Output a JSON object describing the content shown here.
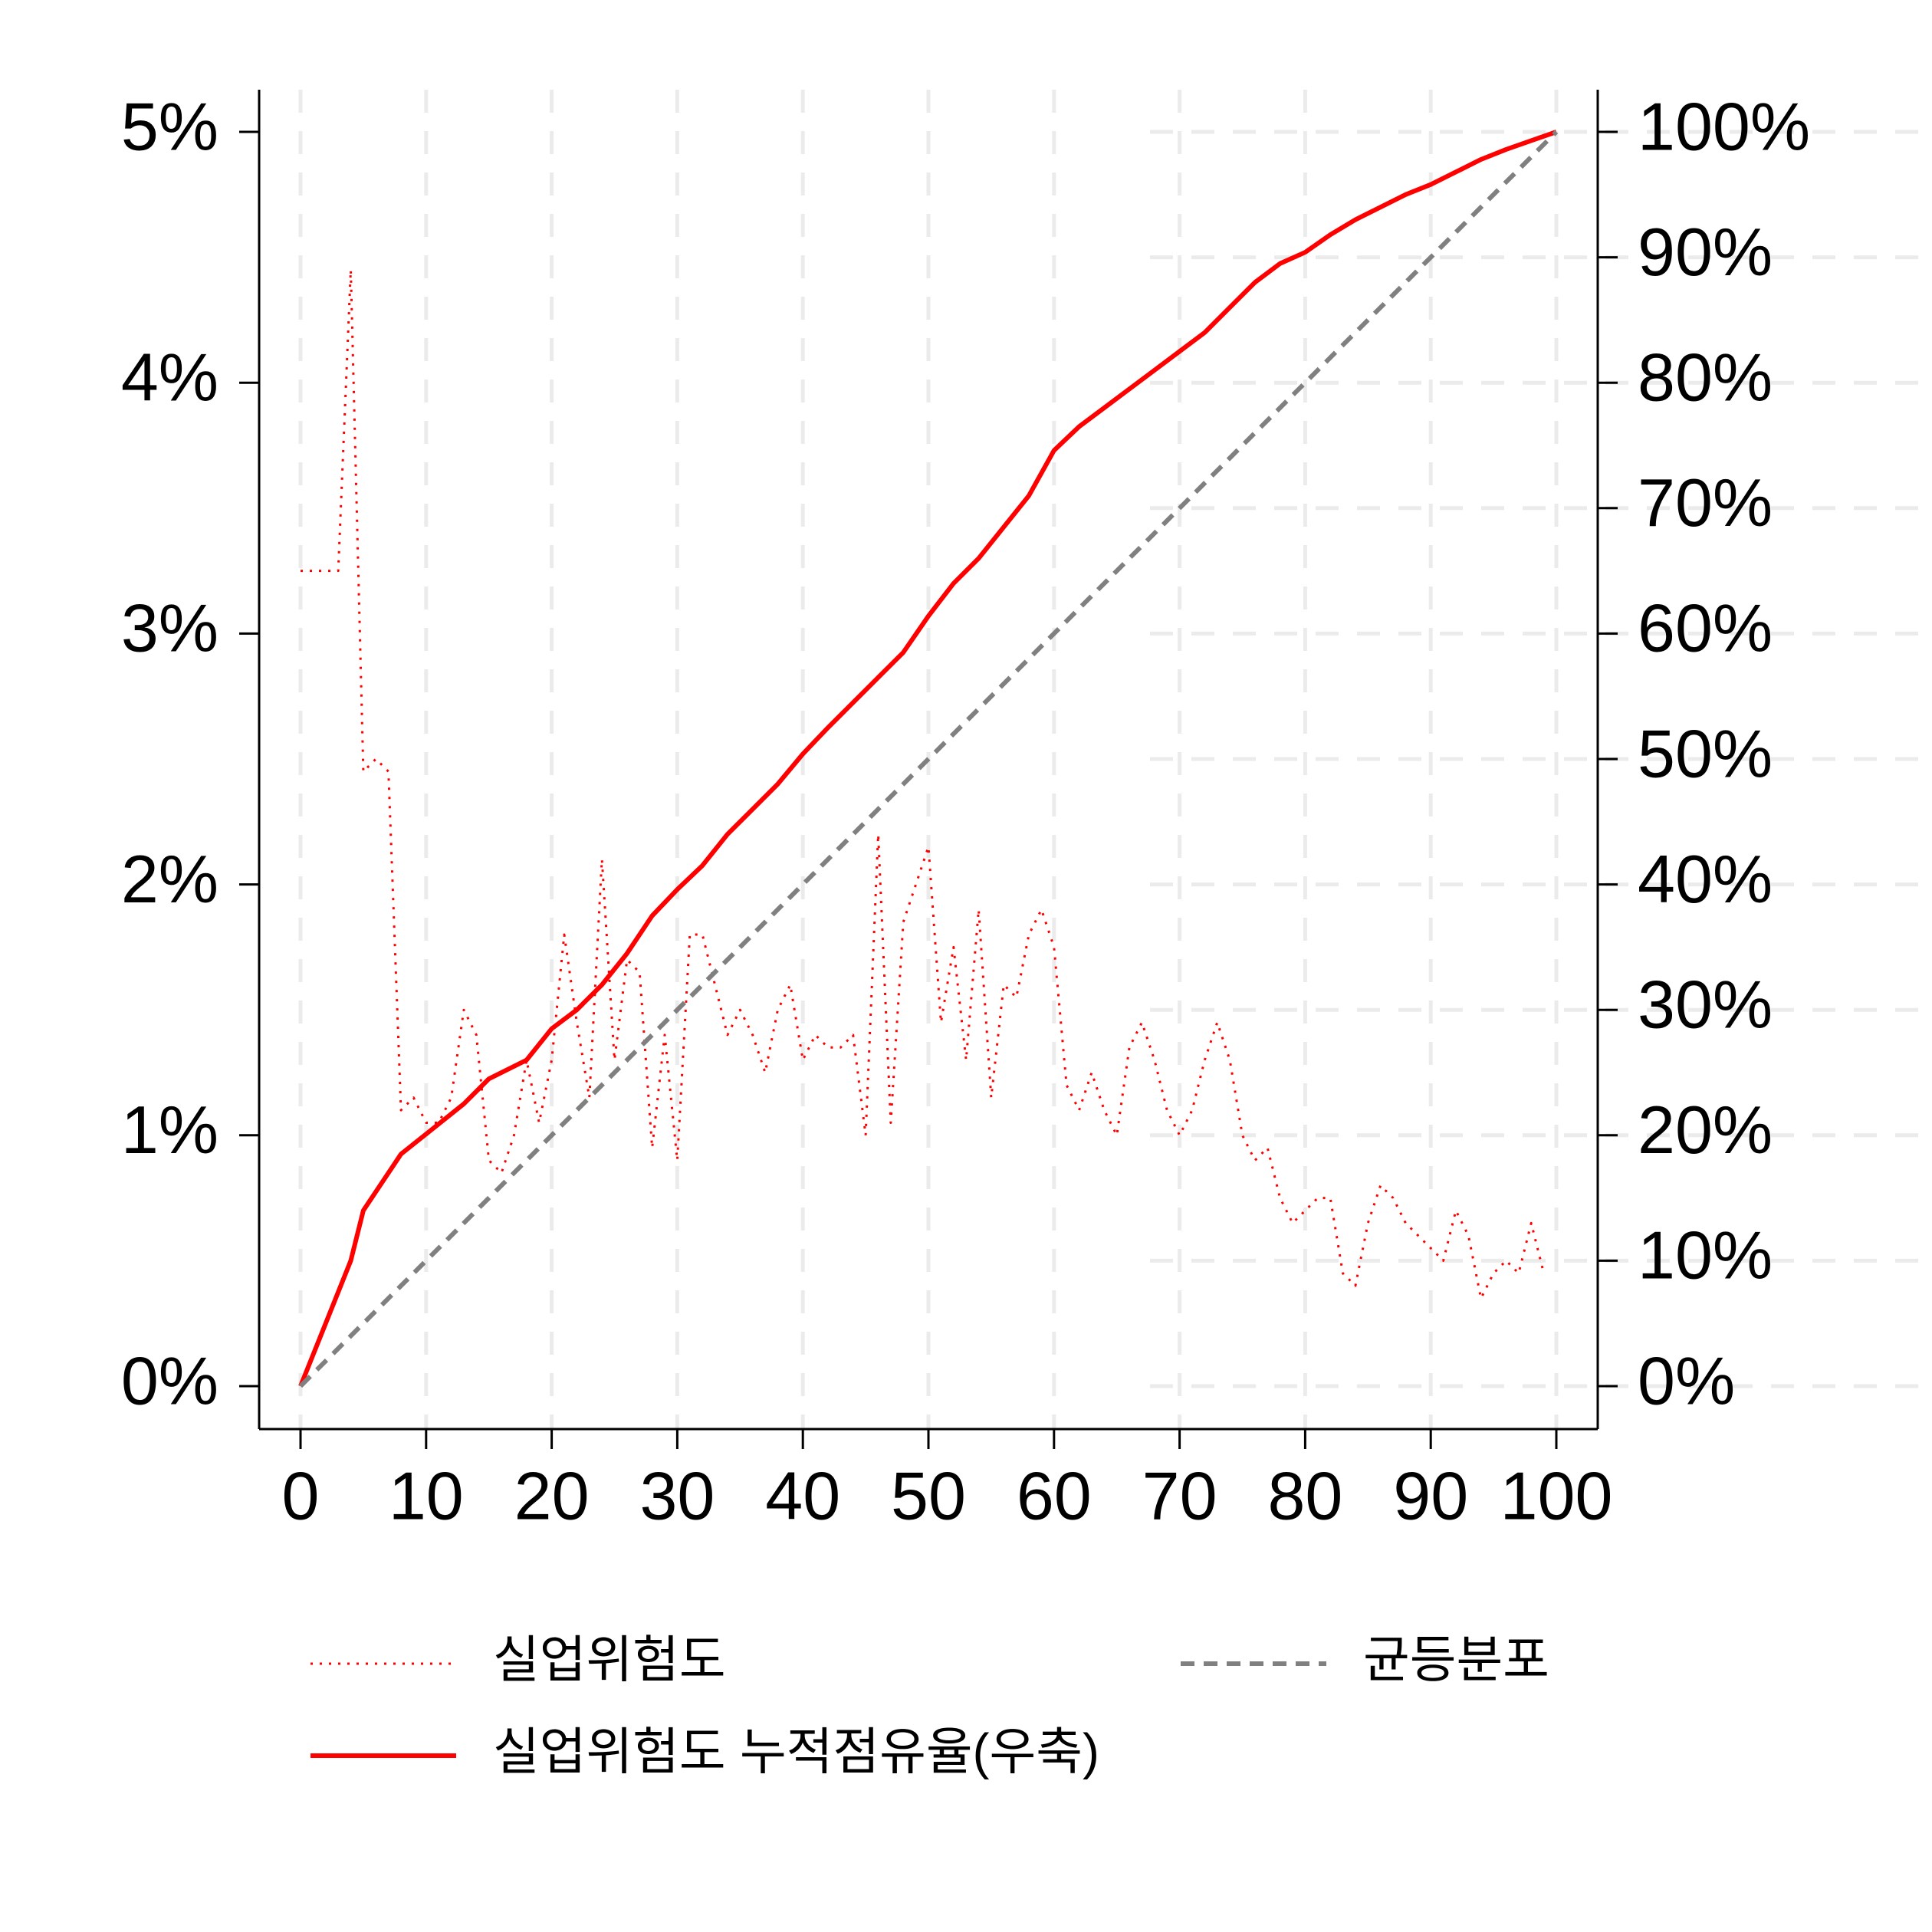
{
  "chart_data": {
    "type": "line",
    "xlim": [
      0,
      100
    ],
    "xticks": [
      0,
      10,
      20,
      30,
      40,
      50,
      60,
      70,
      80,
      90,
      100
    ],
    "ylim": [
      0,
      5
    ],
    "yticks": [
      {
        "value": 0,
        "label": "0%"
      },
      {
        "value": 1,
        "label": "1%"
      },
      {
        "value": 2,
        "label": "2%"
      },
      {
        "value": 3,
        "label": "3%"
      },
      {
        "value": 4,
        "label": "4%"
      },
      {
        "value": 5,
        "label": "5%"
      }
    ],
    "y2lim": [
      0,
      100
    ],
    "y2ticks": [
      {
        "value": 0,
        "label": "0%"
      },
      {
        "value": 10,
        "label": "10%"
      },
      {
        "value": 20,
        "label": "20%"
      },
      {
        "value": 30,
        "label": "30%"
      },
      {
        "value": 40,
        "label": "40%"
      },
      {
        "value": 50,
        "label": "50%"
      },
      {
        "value": 60,
        "label": "60%"
      },
      {
        "value": 70,
        "label": "70%"
      },
      {
        "value": 80,
        "label": "80%"
      },
      {
        "value": 90,
        "label": "90%"
      },
      {
        "value": 100,
        "label": "100%"
      }
    ],
    "xgrid": true,
    "legend": "bottom",
    "series": [
      {
        "name": "실업위험도",
        "color": "#ff0000",
        "style": "dotted",
        "x": [
          0,
          1,
          2,
          3,
          4,
          5,
          6,
          7,
          8,
          9,
          10,
          11,
          12,
          13,
          14,
          15,
          16,
          17,
          18,
          19,
          20,
          21,
          22,
          23,
          24,
          25,
          26,
          27,
          28,
          29,
          30,
          31,
          32,
          33,
          34,
          35,
          36,
          37,
          38,
          39,
          40,
          41,
          42,
          43,
          44,
          45,
          46,
          47,
          48,
          49,
          50,
          51,
          52,
          53,
          54,
          55,
          56,
          57,
          58,
          59,
          60,
          61,
          62,
          63,
          64,
          65,
          66,
          67,
          68,
          69,
          70,
          71,
          72,
          73,
          74,
          75,
          76,
          77,
          78,
          79,
          80,
          81,
          82,
          83,
          84,
          85,
          86,
          87,
          88,
          89,
          90,
          91,
          92,
          93,
          94,
          95,
          96,
          97,
          98,
          99
        ],
        "values": [
          3.25,
          3.25,
          3.25,
          3.25,
          4.45,
          2.45,
          2.5,
          2.45,
          1.1,
          1.15,
          1.05,
          1.05,
          1.15,
          1.5,
          1.4,
          0.9,
          0.85,
          1.0,
          1.3,
          1.05,
          1.3,
          1.8,
          1.45,
          1.15,
          2.1,
          1.3,
          1.7,
          1.65,
          0.95,
          1.4,
          0.9,
          1.8,
          1.8,
          1.6,
          1.4,
          1.5,
          1.4,
          1.25,
          1.5,
          1.6,
          1.3,
          1.4,
          1.35,
          1.35,
          1.4,
          1.0,
          2.2,
          1.05,
          1.85,
          2.0,
          2.15,
          1.45,
          1.75,
          1.3,
          1.9,
          1.15,
          1.6,
          1.55,
          1.8,
          1.9,
          1.75,
          1.2,
          1.1,
          1.25,
          1.1,
          1.0,
          1.35,
          1.45,
          1.3,
          1.1,
          1.0,
          1.1,
          1.3,
          1.45,
          1.3,
          1.0,
          0.9,
          0.95,
          0.75,
          0.65,
          0.7,
          0.75,
          0.75,
          0.45,
          0.4,
          0.65,
          0.8,
          0.75,
          0.65,
          0.6,
          0.55,
          0.5,
          0.7,
          0.6,
          0.35,
          0.45,
          0.5,
          0.45,
          0.65,
          0.45
        ]
      },
      {
        "name": "실업위험도 누적점유율(우축)",
        "color": "#ff0000",
        "style": "solid",
        "axis": "y2",
        "x": [
          0,
          2,
          4,
          5,
          8,
          10,
          13,
          15,
          18,
          20,
          22,
          24,
          26,
          28,
          30,
          32,
          34,
          36,
          38,
          40,
          42,
          44,
          46,
          48,
          50,
          52,
          54,
          56,
          58,
          60,
          62,
          64,
          66,
          68,
          70,
          72,
          74,
          76,
          78,
          80,
          82,
          84,
          86,
          88,
          90,
          92,
          94,
          96,
          98,
          100
        ],
        "values": [
          0,
          5,
          10,
          14,
          18.5,
          20.1,
          22.5,
          24.5,
          26,
          28.5,
          30,
          32,
          34.5,
          37.5,
          39.6,
          41.5,
          44,
          46,
          48,
          50.4,
          52.5,
          54.5,
          56.5,
          58.5,
          61.4,
          64,
          66,
          68.5,
          71,
          74.6,
          76.5,
          78,
          79.5,
          81,
          82.5,
          84,
          86,
          88,
          89.5,
          90.4,
          91.8,
          93,
          94,
          95,
          95.8,
          96.8,
          97.8,
          98.6,
          99.3,
          100
        ]
      },
      {
        "name": "균등분포",
        "color": "#808080",
        "style": "dashed",
        "axis": "y2",
        "x": [
          0,
          100
        ],
        "values": [
          0,
          100
        ]
      }
    ]
  }
}
